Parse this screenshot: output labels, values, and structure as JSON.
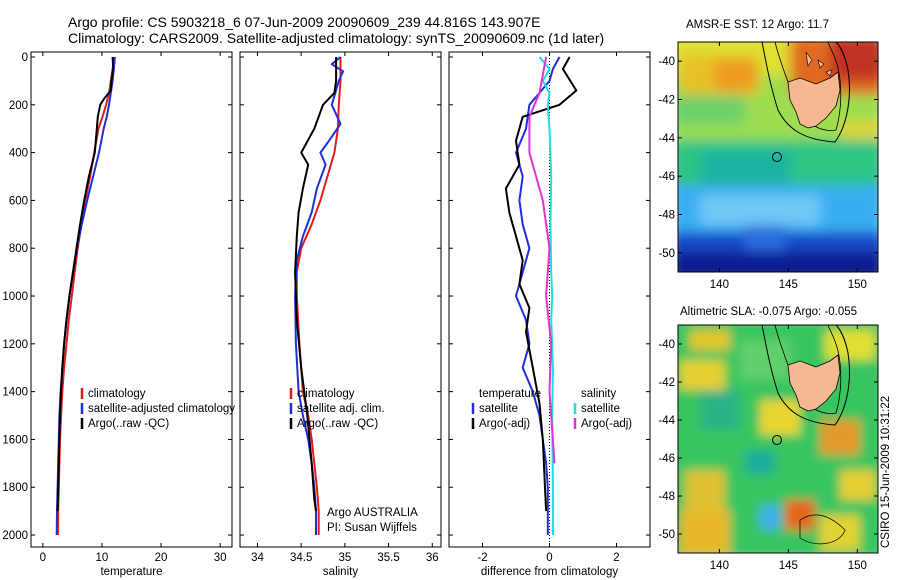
{
  "header": {
    "line1": "Argo profile: CS 5903218_6 07-Jun-2009 20090609_239 44.816S 143.907E",
    "line2": "Climatology: CARS2009. Satellite-adjusted climatology: synTS_20090609.nc (1d later)"
  },
  "side_stamp": "CSIRO 15-Jun-2009 10:31:22",
  "chart_data": [
    {
      "type": "line",
      "xlabel": "temperature",
      "ylabel": "",
      "xlim": [
        -2,
        32
      ],
      "ylim": [
        2050,
        0
      ],
      "xticks": [
        "0",
        "10",
        "20",
        "30"
      ],
      "yticks": [
        "0",
        "200",
        "400",
        "600",
        "800",
        "1000",
        "1200",
        "1400",
        "1600",
        "1800",
        "2000"
      ],
      "legend": [
        "climatology",
        "satellite-adjusted climatology",
        "Argo(..raw -QC)"
      ],
      "series": [
        {
          "name": "climatology",
          "color": "#e41a1c",
          "x": [
            12.0,
            11.8,
            11.5,
            11.2,
            10.7,
            10.1,
            9.4,
            8.7,
            8.0,
            7.2,
            6.5,
            5.9,
            5.4,
            4.9,
            4.4,
            4.0,
            3.6,
            3.3,
            3.1,
            2.9,
            2.8,
            2.7,
            2.6,
            2.55
          ],
          "y": [
            0,
            50,
            100,
            150,
            200,
            250,
            300,
            400,
            500,
            600,
            700,
            800,
            900,
            1000,
            1100,
            1200,
            1300,
            1400,
            1500,
            1600,
            1700,
            1800,
            1900,
            2000
          ]
        },
        {
          "name": "satellite-adjusted climatology",
          "color": "#1f2fd6",
          "x": [
            12.2,
            12.0,
            11.8,
            11.5,
            11.2,
            10.8,
            10.3,
            9.5,
            8.5,
            7.5,
            6.6,
            5.8,
            5.1,
            4.5,
            4.0,
            3.6,
            3.3,
            3.0,
            2.8,
            2.7,
            2.6,
            2.5,
            2.4,
            2.35
          ],
          "y": [
            0,
            50,
            100,
            150,
            200,
            250,
            300,
            400,
            500,
            600,
            700,
            800,
            900,
            1000,
            1100,
            1200,
            1300,
            1400,
            1500,
            1600,
            1700,
            1800,
            1900,
            2000
          ]
        },
        {
          "name": "Argo(..raw -QC)",
          "color": "#000000",
          "x": [
            11.8,
            11.9,
            11.6,
            11.5,
            10.5,
            9.7,
            9.3,
            8.8,
            7.8,
            7.0,
            6.3,
            5.7,
            5.1,
            4.5,
            4.0,
            3.6,
            3.3,
            3.1,
            2.9,
            2.8,
            2.7,
            2.6,
            2.5
          ],
          "y": [
            0,
            50,
            100,
            140,
            170,
            200,
            250,
            400,
            500,
            600,
            700,
            800,
            900,
            1000,
            1100,
            1200,
            1300,
            1400,
            1500,
            1600,
            1700,
            1800,
            1900
          ]
        }
      ]
    },
    {
      "type": "line",
      "xlabel": "salinity",
      "ylabel": "",
      "xlim": [
        33.8,
        36.1
      ],
      "ylim": [
        2050,
        0
      ],
      "xticks": [
        "34",
        "34.5",
        "35",
        "35.5",
        "36"
      ],
      "legend": [
        "climatology",
        "satellite adj. clim.",
        "Argo(..raw -QC)"
      ],
      "annotation": [
        "Argo AUSTRALIA",
        "PI: Susan Wijffels"
      ],
      "series": [
        {
          "name": "climatology",
          "color": "#e41a1c",
          "x": [
            34.95,
            34.95,
            34.93,
            34.92,
            34.88,
            34.8,
            34.72,
            34.62,
            34.5,
            34.45,
            34.45,
            34.48,
            34.52,
            34.58,
            34.62,
            34.65,
            34.68,
            34.7,
            34.7
          ],
          "y": [
            0,
            100,
            200,
            300,
            400,
            500,
            600,
            700,
            800,
            900,
            1000,
            1200,
            1400,
            1500,
            1600,
            1700,
            1800,
            1900,
            2000
          ]
        },
        {
          "name": "satellite adj. clim.",
          "color": "#1f2fd6",
          "x": [
            34.95,
            34.85,
            34.98,
            34.93,
            34.85,
            34.95,
            34.82,
            34.72,
            34.78,
            34.68,
            34.62,
            34.52,
            34.45,
            34.43,
            34.44,
            34.47,
            34.52,
            34.58,
            34.62,
            34.65,
            34.67,
            34.67
          ],
          "y": [
            0,
            30,
            60,
            100,
            200,
            280,
            350,
            400,
            450,
            550,
            650,
            750,
            850,
            1000,
            1200,
            1400,
            1500,
            1600,
            1700,
            1800,
            1900,
            2000
          ]
        },
        {
          "name": "Argo(..raw -QC)",
          "color": "#000000",
          "x": [
            34.9,
            34.9,
            34.88,
            34.75,
            34.65,
            34.5,
            34.58,
            34.52,
            34.47,
            34.45,
            34.43,
            34.45,
            34.5,
            34.57,
            34.62,
            34.65,
            34.67
          ],
          "y": [
            0,
            100,
            150,
            200,
            300,
            400,
            450,
            550,
            650,
            750,
            900,
            1100,
            1300,
            1500,
            1700,
            1850,
            1900
          ]
        }
      ]
    },
    {
      "type": "line",
      "xlabel": "difference from climatology",
      "ylabel": "",
      "xlim": [
        -3.0,
        3.0
      ],
      "ylim": [
        2050,
        0
      ],
      "xticks": [
        "-2",
        "0",
        "2"
      ],
      "legend_groups": [
        {
          "title": "temperature",
          "entries": [
            "satellite",
            "Argo(-adj)"
          ]
        },
        {
          "title": "salinity",
          "entries": [
            "satellite",
            "Argo(-adj)"
          ]
        }
      ],
      "series": [
        {
          "name": "temperature satellite",
          "color": "#1f2fd6",
          "x": [
            0.3,
            0.1,
            0.0,
            -0.3,
            -0.6,
            -0.7,
            -1.0,
            -0.8,
            -0.9,
            -0.8,
            -0.6,
            -0.8,
            -1.0,
            -0.7,
            -0.6,
            -0.8,
            -0.5,
            -0.3,
            -0.2,
            -0.1,
            -0.05,
            -0.05
          ],
          "y": [
            0,
            50,
            100,
            150,
            200,
            300,
            400,
            500,
            600,
            700,
            800,
            900,
            1000,
            1100,
            1200,
            1300,
            1400,
            1500,
            1600,
            1700,
            1800,
            2000
          ]
        },
        {
          "name": "temperature Argo(-adj)",
          "color": "#000000",
          "x": [
            0.6,
            0.4,
            0.8,
            0.3,
            -0.8,
            -1.0,
            -0.9,
            -1.3,
            -1.2,
            -1.0,
            -0.8,
            -0.9,
            -0.6,
            -0.7,
            -0.5,
            -0.3,
            -0.2,
            -0.1
          ],
          "y": [
            0,
            50,
            140,
            200,
            250,
            350,
            450,
            550,
            650,
            750,
            850,
            950,
            1050,
            1150,
            1300,
            1450,
            1600,
            1900
          ]
        },
        {
          "name": "salinity satellite",
          "color": "#22dddd",
          "x": [
            -0.3,
            0.0,
            -0.2,
            0.0,
            -0.05,
            0.0,
            0.05,
            0.03,
            0.05,
            0.08,
            0.05,
            0.1,
            0.08,
            0.1,
            0.1
          ],
          "y": [
            0,
            50,
            100,
            150,
            200,
            300,
            500,
            700,
            900,
            1000,
            1100,
            1300,
            1500,
            1800,
            2000
          ]
        },
        {
          "name": "salinity Argo(-adj)",
          "color": "#e033d0",
          "x": [
            -0.1,
            -0.3,
            -0.6,
            -0.6,
            -0.2,
            0.0,
            -0.1,
            0.05,
            0.0,
            0.1,
            0.15
          ],
          "y": [
            0,
            150,
            250,
            400,
            600,
            800,
            1000,
            1200,
            1400,
            1600,
            1700
          ]
        }
      ]
    },
    {
      "type": "heatmap",
      "title": "AMSR-E SST: 12  Argo: 11.7",
      "xticks": [
        "140",
        "145",
        "150"
      ],
      "yticks": [
        "-40",
        "-42",
        "-44",
        "-46",
        "-48",
        "-50"
      ],
      "xlim": [
        137,
        151.5
      ],
      "ylim": [
        -51,
        -39
      ],
      "marker": {
        "lon": 143.907,
        "lat": -44.816
      }
    },
    {
      "type": "heatmap",
      "title": "Altimetric SLA: -0.075  Argo: -0.055",
      "xticks": [
        "140",
        "145",
        "150"
      ],
      "yticks": [
        "-40",
        "-42",
        "-44",
        "-46",
        "-48",
        "-50"
      ],
      "xlim": [
        137,
        151.5
      ],
      "ylim": [
        -51,
        -39
      ],
      "marker": {
        "lon": 143.907,
        "lat": -44.816
      }
    }
  ]
}
